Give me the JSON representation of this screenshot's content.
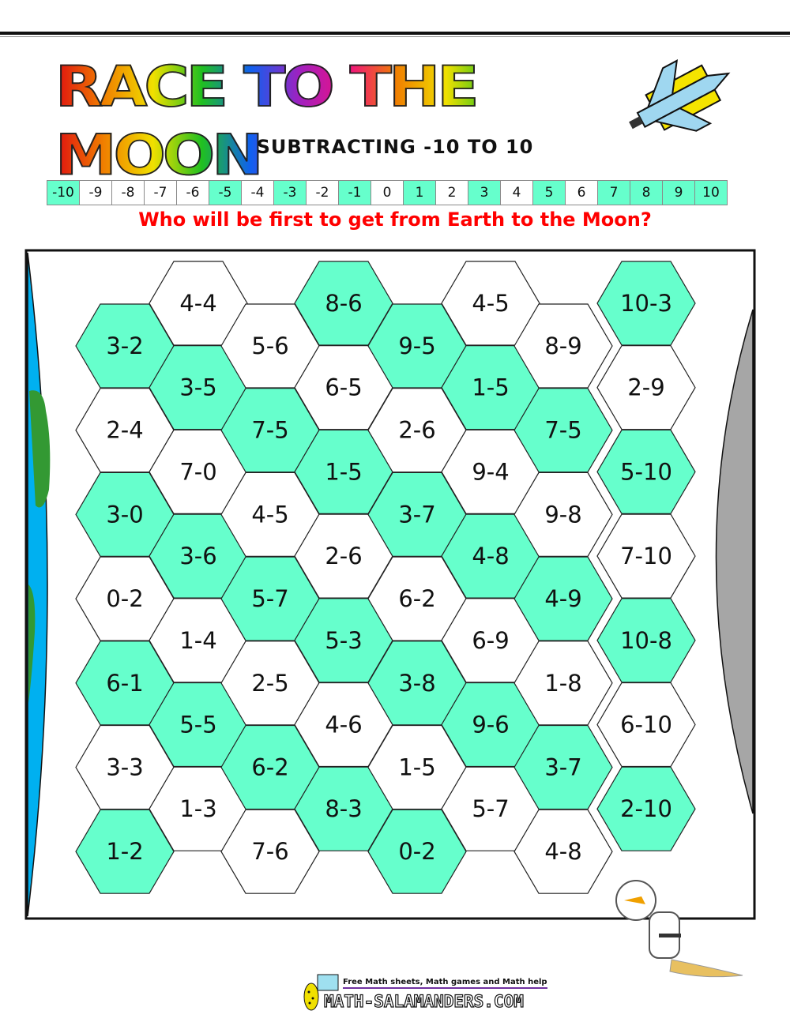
{
  "header": {
    "title": "RACE TO THE MOON",
    "subtitle": "SUBTRACTING -10 TO 10",
    "question": "Who will be first to get from Earth to the Moon?"
  },
  "number_line": [
    {
      "label": "-10",
      "shaded": true
    },
    {
      "label": "-9",
      "shaded": false
    },
    {
      "label": "-8",
      "shaded": false
    },
    {
      "label": "-7",
      "shaded": false
    },
    {
      "label": "-6",
      "shaded": false
    },
    {
      "label": "-5",
      "shaded": true
    },
    {
      "label": "-4",
      "shaded": false
    },
    {
      "label": "-3",
      "shaded": true
    },
    {
      "label": "-2",
      "shaded": false
    },
    {
      "label": "-1",
      "shaded": true
    },
    {
      "label": "0",
      "shaded": false
    },
    {
      "label": "1",
      "shaded": true
    },
    {
      "label": "2",
      "shaded": false
    },
    {
      "label": "3",
      "shaded": true
    },
    {
      "label": "4",
      "shaded": false
    },
    {
      "label": "5",
      "shaded": true
    },
    {
      "label": "6",
      "shaded": false
    },
    {
      "label": "7",
      "shaded": true
    },
    {
      "label": "8",
      "shaded": true
    },
    {
      "label": "9",
      "shaded": true
    },
    {
      "label": "10",
      "shaded": true
    }
  ],
  "colors": {
    "shaded": "#66ffcc",
    "earth_ocean": "#00b0f0",
    "earth_land": "#339933",
    "moon": "#a6a6a6",
    "question": "#ff0000"
  },
  "board": {
    "columns": [
      [
        {
          "label": "3-2",
          "shaded": true
        },
        {
          "label": "2-4",
          "shaded": false
        },
        {
          "label": "3-0",
          "shaded": true
        },
        {
          "label": "0-2",
          "shaded": false
        },
        {
          "label": "6-1",
          "shaded": true
        },
        {
          "label": "3-3",
          "shaded": false
        },
        {
          "label": "1-2",
          "shaded": true
        }
      ],
      [
        {
          "label": "4-4",
          "shaded": false
        },
        {
          "label": "3-5",
          "shaded": true
        },
        {
          "label": "7-0",
          "shaded": false
        },
        {
          "label": "3-6",
          "shaded": true
        },
        {
          "label": "1-4",
          "shaded": false
        },
        {
          "label": "5-5",
          "shaded": true
        },
        {
          "label": "1-3",
          "shaded": false
        }
      ],
      [
        {
          "label": "5-6",
          "shaded": false
        },
        {
          "label": "7-5",
          "shaded": true
        },
        {
          "label": "4-5",
          "shaded": false
        },
        {
          "label": "5-7",
          "shaded": true
        },
        {
          "label": "2-5",
          "shaded": false
        },
        {
          "label": "6-2",
          "shaded": true
        },
        {
          "label": "7-6",
          "shaded": false
        }
      ],
      [
        {
          "label": "8-6",
          "shaded": true
        },
        {
          "label": "6-5",
          "shaded": false
        },
        {
          "label": "1-5",
          "shaded": true
        },
        {
          "label": "2-6",
          "shaded": false
        },
        {
          "label": "5-3",
          "shaded": true
        },
        {
          "label": "4-6",
          "shaded": false
        },
        {
          "label": "8-3",
          "shaded": true
        }
      ],
      [
        {
          "label": "9-5",
          "shaded": true
        },
        {
          "label": "2-6",
          "shaded": false
        },
        {
          "label": "3-7",
          "shaded": true
        },
        {
          "label": "6-2",
          "shaded": false
        },
        {
          "label": "3-8",
          "shaded": true
        },
        {
          "label": "1-5",
          "shaded": false
        },
        {
          "label": "0-2",
          "shaded": true
        }
      ],
      [
        {
          "label": "4-5",
          "shaded": false
        },
        {
          "label": "1-5",
          "shaded": true
        },
        {
          "label": "9-4",
          "shaded": false
        },
        {
          "label": "4-8",
          "shaded": true
        },
        {
          "label": "6-9",
          "shaded": false
        },
        {
          "label": "9-6",
          "shaded": true
        },
        {
          "label": "5-7",
          "shaded": false
        }
      ],
      [
        {
          "label": "8-9",
          "shaded": false
        },
        {
          "label": "7-5",
          "shaded": true
        },
        {
          "label": "9-8",
          "shaded": false
        },
        {
          "label": "4-9",
          "shaded": true
        },
        {
          "label": "1-8",
          "shaded": false
        },
        {
          "label": "3-7",
          "shaded": true
        },
        {
          "label": "4-8",
          "shaded": false
        }
      ],
      [
        {
          "label": "10-3",
          "shaded": true
        },
        {
          "label": "2-9",
          "shaded": false
        },
        {
          "label": "5-10",
          "shaded": true
        },
        {
          "label": "7-10",
          "shaded": false
        },
        {
          "label": "10-8",
          "shaded": true
        },
        {
          "label": "6-10",
          "shaded": false
        },
        {
          "label": "2-10",
          "shaded": true
        }
      ]
    ]
  },
  "footer": {
    "tagline": "Free Math sheets, Math games and Math help",
    "site": "MATH-SALAMANDERS.COM"
  }
}
